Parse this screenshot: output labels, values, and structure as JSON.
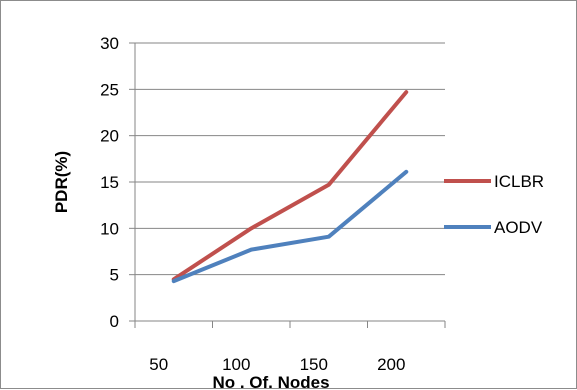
{
  "chart_data": {
    "type": "line",
    "title": "",
    "xlabel": "No . Of. Nodes",
    "ylabel": "PDR(%)",
    "categories": [
      "50",
      "100",
      "150",
      "200"
    ],
    "ylim": [
      0,
      30
    ],
    "yticks": [
      0,
      5,
      10,
      15,
      20,
      25,
      30
    ],
    "grid": true,
    "legend_position": "right",
    "series": [
      {
        "name": "ICLBR",
        "color": "#c0504d",
        "values": [
          4.5,
          10.0,
          14.7,
          24.7
        ]
      },
      {
        "name": "AODV",
        "color": "#4f81bd",
        "values": [
          4.3,
          7.7,
          9.1,
          16.1
        ]
      }
    ]
  }
}
